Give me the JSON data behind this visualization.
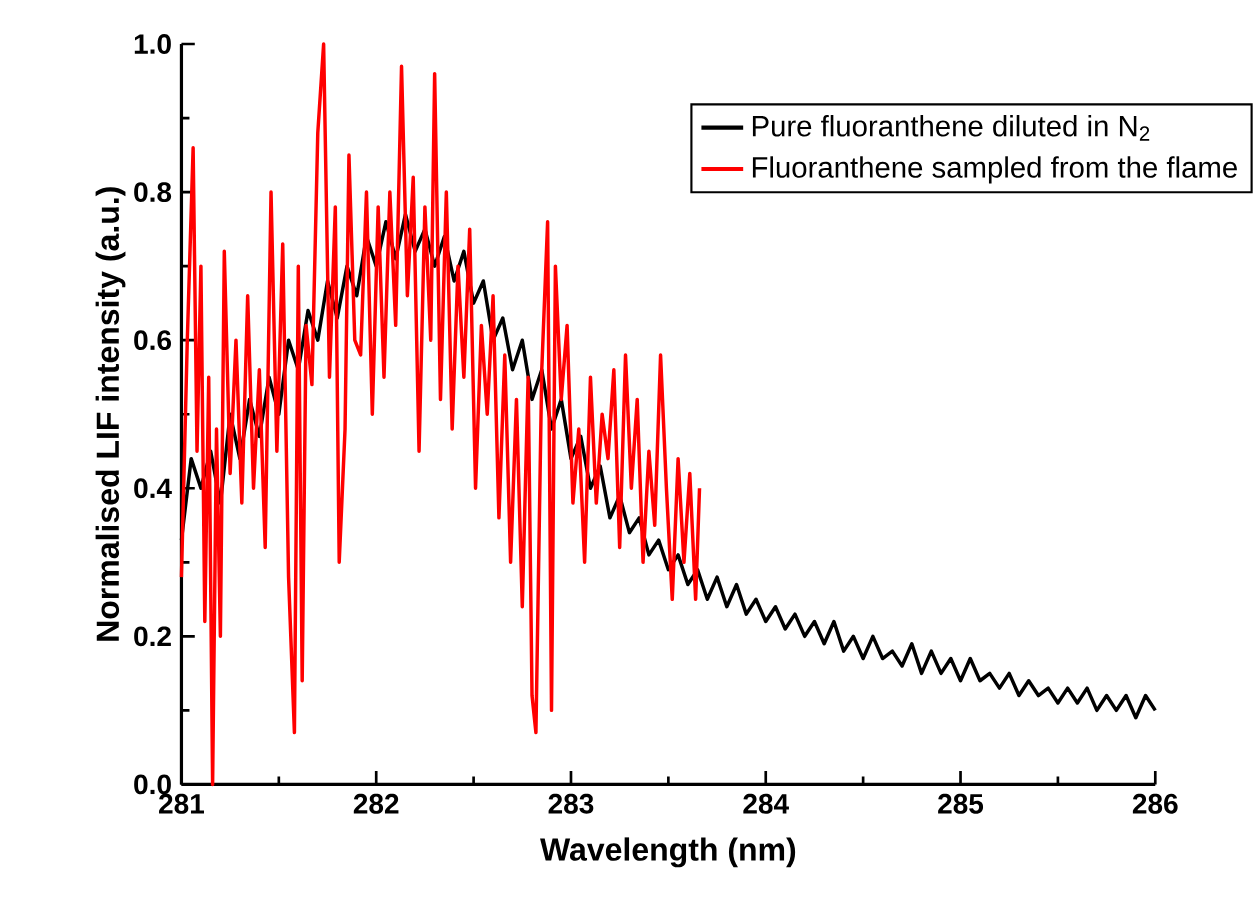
{
  "chart_data": {
    "type": "line",
    "xlabel": "Wavelength (nm)",
    "ylabel": "Normalised LIF intensity (a.u.)",
    "xlim": [
      281,
      286
    ],
    "ylim": [
      0,
      1
    ],
    "xticks": [
      281,
      282,
      283,
      284,
      285,
      286
    ],
    "yticks": [
      {
        "value": 0,
        "label": "0.0"
      },
      {
        "value": 0.2,
        "label": "0.2"
      },
      {
        "value": 0.4,
        "label": "0.4"
      },
      {
        "value": 0.6,
        "label": "0.6"
      },
      {
        "value": 0.8,
        "label": "0.8"
      },
      {
        "value": 1,
        "label": "1.0"
      }
    ],
    "legend": "top right",
    "line_style": "solid",
    "series": [
      {
        "name": "Pure fluoranthene diluted in N$_{2}$",
        "color": "#000000",
        "x": [
          281.0,
          281.05,
          281.1,
          281.15,
          281.2,
          281.25,
          281.3,
          281.35,
          281.4,
          281.45,
          281.5,
          281.55,
          281.6,
          281.65,
          281.7,
          281.75,
          281.8,
          281.85,
          281.9,
          281.95,
          282.0,
          282.05,
          282.1,
          282.15,
          282.2,
          282.25,
          282.3,
          282.35,
          282.4,
          282.45,
          282.5,
          282.55,
          282.6,
          282.65,
          282.7,
          282.75,
          282.8,
          282.85,
          282.9,
          282.95,
          283.0,
          283.05,
          283.1,
          283.15,
          283.2,
          283.25,
          283.3,
          283.35,
          283.4,
          283.45,
          283.5,
          283.55,
          283.6,
          283.65,
          283.7,
          283.75,
          283.8,
          283.85,
          283.9,
          283.95,
          284.0,
          284.05,
          284.1,
          284.15,
          284.2,
          284.25,
          284.3,
          284.35,
          284.4,
          284.45,
          284.5,
          284.55,
          284.6,
          284.65,
          284.7,
          284.75,
          284.8,
          284.85,
          284.9,
          284.95,
          285.0,
          285.05,
          285.1,
          285.15,
          285.2,
          285.25,
          285.3,
          285.35,
          285.4,
          285.45,
          285.5,
          285.55,
          285.6,
          285.65,
          285.7,
          285.75,
          285.8,
          285.85,
          285.9,
          285.95,
          286.0
        ],
        "values": [
          0.33,
          0.44,
          0.4,
          0.45,
          0.38,
          0.5,
          0.44,
          0.52,
          0.47,
          0.55,
          0.5,
          0.6,
          0.56,
          0.64,
          0.6,
          0.68,
          0.63,
          0.7,
          0.66,
          0.74,
          0.7,
          0.76,
          0.71,
          0.77,
          0.72,
          0.75,
          0.7,
          0.74,
          0.68,
          0.72,
          0.65,
          0.68,
          0.6,
          0.63,
          0.56,
          0.6,
          0.52,
          0.56,
          0.48,
          0.52,
          0.44,
          0.47,
          0.4,
          0.43,
          0.36,
          0.39,
          0.34,
          0.36,
          0.31,
          0.33,
          0.29,
          0.31,
          0.27,
          0.29,
          0.25,
          0.28,
          0.24,
          0.27,
          0.23,
          0.25,
          0.22,
          0.24,
          0.21,
          0.23,
          0.2,
          0.22,
          0.19,
          0.22,
          0.18,
          0.2,
          0.17,
          0.2,
          0.17,
          0.18,
          0.16,
          0.19,
          0.15,
          0.18,
          0.15,
          0.17,
          0.14,
          0.17,
          0.14,
          0.15,
          0.13,
          0.15,
          0.12,
          0.14,
          0.12,
          0.13,
          0.11,
          0.13,
          0.11,
          0.13,
          0.1,
          0.12,
          0.1,
          0.12,
          0.09,
          0.12,
          0.1
        ]
      },
      {
        "name": "Fluoranthene sampled from the flame",
        "color": "#ff0000",
        "x": [
          281.0,
          281.03,
          281.06,
          281.08,
          281.1,
          281.12,
          281.14,
          281.16,
          281.18,
          281.2,
          281.22,
          281.25,
          281.28,
          281.31,
          281.34,
          281.37,
          281.4,
          281.43,
          281.46,
          281.49,
          281.52,
          281.55,
          281.58,
          281.6,
          281.62,
          281.64,
          281.67,
          281.7,
          281.73,
          281.76,
          281.79,
          281.81,
          281.84,
          281.86,
          281.89,
          281.92,
          281.95,
          281.98,
          282.01,
          282.04,
          282.07,
          282.1,
          282.13,
          282.16,
          282.19,
          282.22,
          282.25,
          282.28,
          282.3,
          282.33,
          282.36,
          282.39,
          282.42,
          282.45,
          282.48,
          282.51,
          282.54,
          282.57,
          282.6,
          282.63,
          282.66,
          282.69,
          282.72,
          282.75,
          282.78,
          282.8,
          282.82,
          282.85,
          282.88,
          282.9,
          282.92,
          282.95,
          282.98,
          283.01,
          283.04,
          283.07,
          283.1,
          283.13,
          283.16,
          283.19,
          283.22,
          283.25,
          283.28,
          283.31,
          283.34,
          283.37,
          283.4,
          283.43,
          283.46,
          283.49,
          283.52,
          283.55,
          283.58,
          283.61,
          283.64,
          283.66
        ],
        "values": [
          0.28,
          0.6,
          0.86,
          0.45,
          0.7,
          0.22,
          0.55,
          0.0,
          0.48,
          0.2,
          0.72,
          0.42,
          0.6,
          0.38,
          0.66,
          0.4,
          0.56,
          0.32,
          0.8,
          0.45,
          0.73,
          0.28,
          0.07,
          0.7,
          0.14,
          0.62,
          0.54,
          0.88,
          1.0,
          0.55,
          0.78,
          0.3,
          0.48,
          0.85,
          0.6,
          0.58,
          0.8,
          0.5,
          0.78,
          0.55,
          0.8,
          0.62,
          0.97,
          0.66,
          0.82,
          0.45,
          0.78,
          0.6,
          0.96,
          0.52,
          0.8,
          0.48,
          0.7,
          0.55,
          0.75,
          0.4,
          0.62,
          0.5,
          0.66,
          0.36,
          0.58,
          0.3,
          0.52,
          0.24,
          0.55,
          0.12,
          0.07,
          0.56,
          0.76,
          0.1,
          0.7,
          0.52,
          0.62,
          0.38,
          0.48,
          0.3,
          0.55,
          0.38,
          0.5,
          0.44,
          0.56,
          0.32,
          0.58,
          0.4,
          0.52,
          0.3,
          0.45,
          0.35,
          0.58,
          0.4,
          0.25,
          0.44,
          0.3,
          0.42,
          0.25,
          0.4
        ]
      }
    ]
  }
}
